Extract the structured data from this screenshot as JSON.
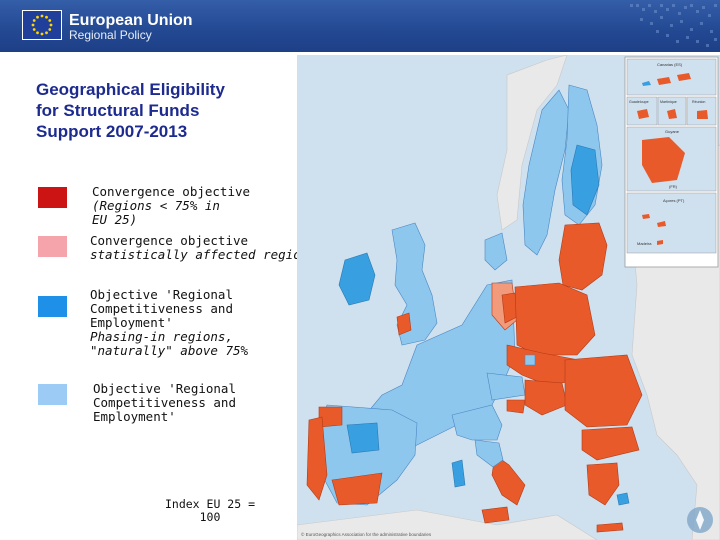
{
  "header": {
    "org_name": "European Union",
    "org_subtitle": "Regional Policy",
    "banner_color": "#244a94"
  },
  "slide": {
    "title": "Geographical  Eligibility\nfor Structural Funds\nSupport 2007-2013"
  },
  "legend": [
    {
      "main": "Convergence objective",
      "detail": "(Regions < 75% in\nEU 25)",
      "color": "#cc1414"
    },
    {
      "main": "Convergence objective",
      "detail": "statistically affected regions",
      "color": "#f4a4aa"
    },
    {
      "main": "Objective 'Regional\nCompetitiveness and\nEmployment'",
      "detail": "Phasing-in regions,\n\"naturally\" above 75%",
      "color": "#1e90e8"
    },
    {
      "main": "Objective 'Regional\nCompetitiveness and\nEmployment'",
      "detail": "",
      "color": "#9ccbf6"
    }
  ],
  "index_note": "Index EU 25 =\n100",
  "map": {
    "sea_color": "#cfe0ee",
    "convergence_fill": "#e85a2a",
    "statistical_fill": "#f29a7c",
    "phasing_in_fill": "#38a0e0",
    "competitiveness_fill": "#8ec7ee",
    "non_eu_fill": "#e9e9e9",
    "inset_labels": [
      "Canarias (ES)",
      "Guadeloupe",
      "Martinique",
      "Réunion",
      "Guyane",
      "(FR)",
      "Açores (PT)",
      "Madeira"
    ],
    "copyright": "© EuroGeographics Association for the administrative boundaries"
  }
}
